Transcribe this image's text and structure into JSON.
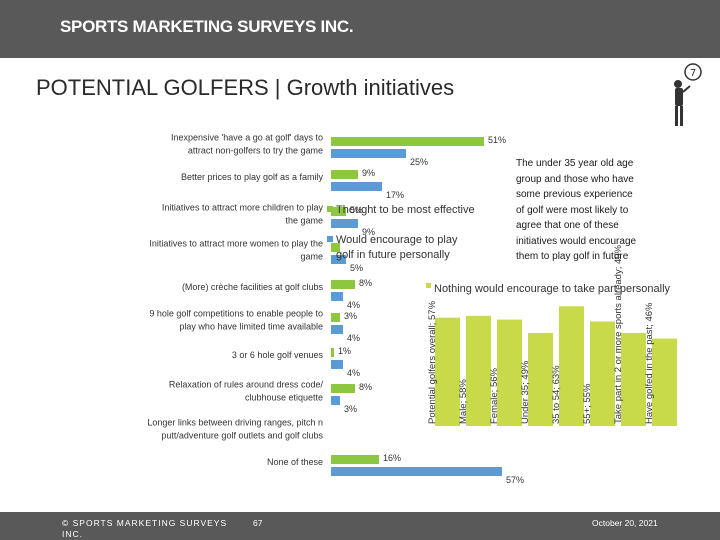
{
  "header": {
    "brand": "SPORTS MARKETING SURVEYS INC."
  },
  "title": "POTENTIAL GOLFERS | Growth initiatives",
  "note": "The under 35 year old age group and those who have some previous experience of golf were most likely to agree that one of these initiatives would encourage them to play golf in future",
  "footer": {
    "copyright": "© SPORTS MARKETING SURVEYS INC.",
    "page": "67",
    "date": "October 20, 2021"
  },
  "icons": {
    "golfer": "golfer-icon"
  },
  "colors": {
    "primary": "#8dc63f",
    "secondary": "#5b9bd5",
    "tertiary": "#c8d94a",
    "header": "#595959"
  },
  "chart_data": [
    {
      "type": "bar",
      "orientation": "horizontal",
      "categories": [
        "Inexpensive 'have a go at golf' days to attract non-golfers to try the game",
        "Better prices to play golf as a family",
        "Initiatives to attract more children to play the game",
        "Initiatives to attract more women to play the game",
        "(More) crèche facilities at golf clubs",
        "9 hole golf competitions to enable people to play who have limited time available",
        "3 or 6 hole golf venues",
        "Relaxation of rules around dress code/ clubhouse etiquette",
        "Longer links between driving ranges, pitch n putt/adventure golf outlets and golf clubs",
        "None of these"
      ],
      "series": [
        {
          "name": "Thought to be most effective",
          "values": [
            51,
            9,
            5,
            3,
            8,
            3,
            1,
            8,
            null,
            16
          ]
        },
        {
          "name": "Would encourage to play golf in future personally",
          "values": [
            25,
            17,
            9,
            5,
            4,
            4,
            4,
            3,
            null,
            57
          ]
        }
      ],
      "value_labels": [
        [
          "51%",
          "25%"
        ],
        [
          "9%",
          "17%"
        ],
        [
          "5%",
          "9%"
        ],
        [
          "",
          "5%"
        ],
        [
          "8%",
          "4%"
        ],
        [
          "3%",
          "4%"
        ],
        [
          "1%",
          "4%"
        ],
        [
          "8%",
          "3%"
        ],
        [
          "",
          ""
        ],
        [
          "16%",
          "57%"
        ]
      ],
      "legend": [
        "Thought to be most effective",
        "Would encourage to play golf in future personally"
      ],
      "legend_position": "center-right"
    },
    {
      "type": "bar",
      "orientation": "vertical",
      "title": "Nothing would encourage to take part personally",
      "categories": [
        "Potential golfers overall",
        "Male",
        "Female",
        "Under 35",
        "35 to 54",
        "55+",
        "Take part in 2 or more sports already",
        "Have golfed in the past"
      ],
      "values": [
        57,
        58,
        56,
        49,
        63,
        55,
        49,
        46
      ],
      "labels": [
        "Potential golfers overall; 57%",
        "Male; 58%",
        "Female; 56%",
        "Under 35; 49%",
        "35 to 54; 63%",
        "55+; 55%",
        "Take part in 2 or more sports already; 49%",
        "Have golfed in the past; 46%"
      ]
    }
  ]
}
